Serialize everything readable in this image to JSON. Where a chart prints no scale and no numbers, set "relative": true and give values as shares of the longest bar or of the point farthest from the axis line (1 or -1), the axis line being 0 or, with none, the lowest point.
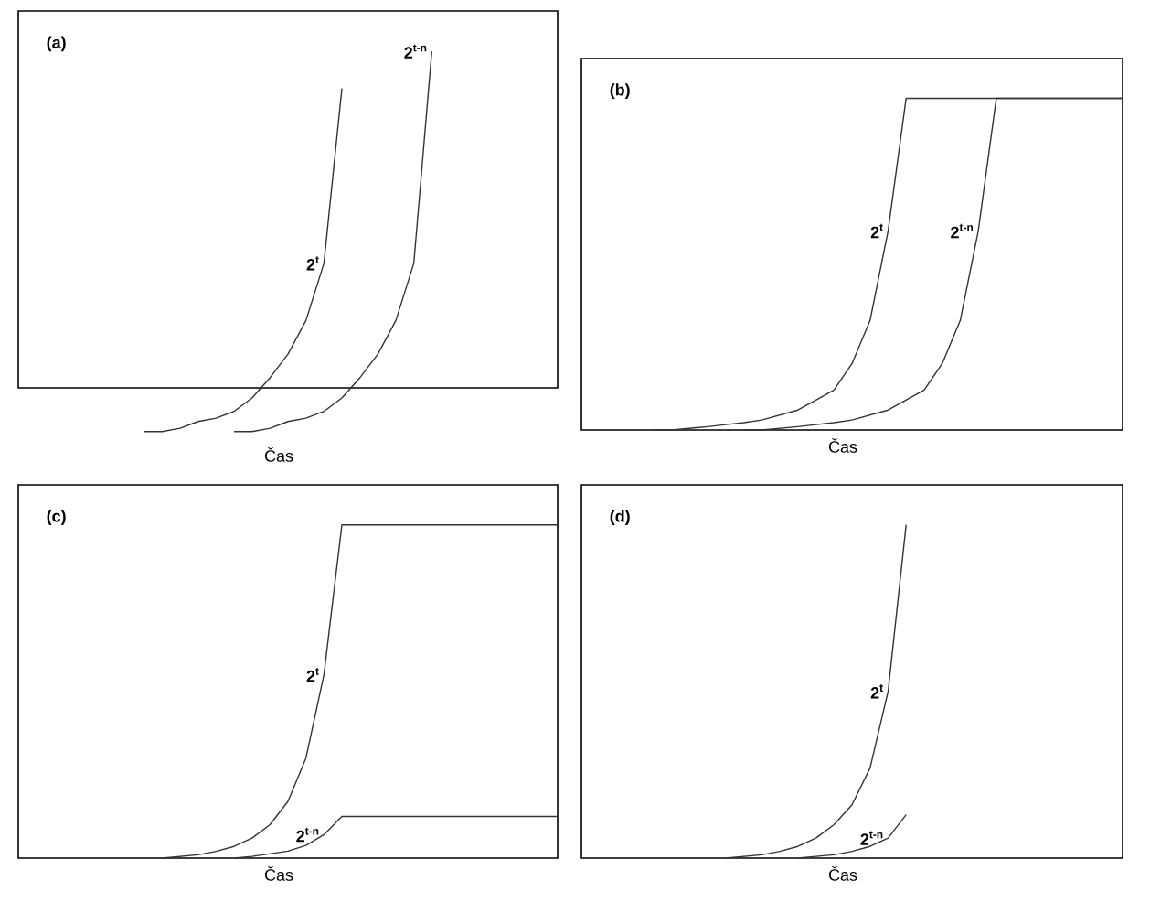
{
  "chart_data": [
    {
      "type": "line",
      "title": "(a)",
      "xlabel": "Čas",
      "relative": true,
      "tick_labels": false,
      "categories": [
        null,
        null,
        null,
        null,
        null,
        null,
        null,
        null,
        null,
        null,
        null,
        null,
        null,
        null,
        null,
        null,
        null,
        null,
        null,
        null,
        null,
        null,
        null,
        null,
        null,
        null,
        null,
        null,
        null,
        null,
        null
      ],
      "series": [
        {
          "name": "2$^{t}$",
          "color": "#333333",
          "values": [
            null,
            null,
            null,
            null,
            null,
            null,
            null,
            -0.13,
            -0.13,
            -0.12,
            -0.1,
            -0.09,
            -0.07,
            -0.03,
            0.03,
            0.1,
            0.2,
            0.37,
            0.89,
            null,
            null,
            null,
            null,
            null,
            null,
            null,
            null,
            null,
            null,
            null,
            null
          ]
        },
        {
          "name": "2$^{t-n}$",
          "color": "#333333",
          "values": [
            null,
            null,
            null,
            null,
            null,
            null,
            null,
            null,
            null,
            null,
            null,
            null,
            -0.13,
            -0.13,
            -0.12,
            -0.1,
            -0.09,
            -0.07,
            -0.03,
            0.03,
            0.1,
            0.2,
            0.37,
            1,
            null,
            null,
            null,
            null,
            null,
            null,
            null
          ]
        }
      ]
    },
    {
      "type": "line",
      "title": "(b)",
      "xlabel": "Čas",
      "relative": true,
      "tick_labels": false,
      "categories": [
        null,
        null,
        null,
        null,
        null,
        null,
        null,
        null,
        null,
        null,
        null,
        null,
        null,
        null,
        null,
        null,
        null,
        null,
        null,
        null,
        null,
        null,
        null,
        null,
        null,
        null,
        null,
        null,
        null,
        null,
        null
      ],
      "series": [
        {
          "name": "2$^{t}$",
          "color": "#333333",
          "values": [
            null,
            null,
            null,
            null,
            0,
            0,
            0.005,
            0.01,
            0.016,
            0.022,
            0.03,
            0.045,
            0.06,
            0.09,
            0.12,
            0.2,
            0.33,
            0.6,
            1,
            1,
            1,
            1,
            1,
            1,
            1,
            1,
            1,
            1,
            1,
            1,
            1
          ]
        },
        {
          "name": "2$^{t-n}$",
          "color": "#333333",
          "values": [
            null,
            null,
            null,
            null,
            null,
            null,
            null,
            null,
            null,
            0,
            0,
            0.005,
            0.01,
            0.016,
            0.022,
            0.03,
            0.045,
            0.06,
            0.09,
            0.12,
            0.2,
            0.33,
            0.6,
            1,
            1,
            1,
            1,
            1,
            1,
            1,
            1
          ]
        }
      ]
    },
    {
      "type": "line",
      "title": "(c)",
      "xlabel": "Čas",
      "relative": true,
      "tick_labels": false,
      "categories": [
        null,
        null,
        null,
        null,
        null,
        null,
        null,
        null,
        null,
        null,
        null,
        null,
        null,
        null,
        null,
        null,
        null,
        null,
        null,
        null,
        null,
        null,
        null,
        null,
        null,
        null,
        null,
        null,
        null,
        null,
        null
      ],
      "series": [
        {
          "name": "2$^{t}$",
          "color": "#333333",
          "values": [
            null,
            null,
            null,
            null,
            null,
            null,
            null,
            null,
            0,
            0.005,
            0.01,
            0.02,
            0.035,
            0.06,
            0.1,
            0.17,
            0.3,
            0.55,
            1,
            1,
            1,
            1,
            1,
            1,
            1,
            1,
            1,
            1,
            1,
            1,
            1
          ]
        },
        {
          "name": "2$^{t-n}$",
          "color": "#333333",
          "values": [
            null,
            null,
            null,
            null,
            null,
            null,
            null,
            null,
            null,
            null,
            null,
            null,
            0,
            0.005,
            0.013,
            0.021,
            0.038,
            0.07,
            0.125,
            0.125,
            0.125,
            0.125,
            0.125,
            0.125,
            0.125,
            0.125,
            0.125,
            0.125,
            0.125,
            0.125,
            0.125
          ]
        }
      ]
    },
    {
      "type": "line",
      "title": "(d)",
      "xlabel": "Čas",
      "relative": true,
      "tick_labels": false,
      "categories": [
        null,
        null,
        null,
        null,
        null,
        null,
        null,
        null,
        null,
        null,
        null,
        null,
        null,
        null,
        null,
        null,
        null,
        null,
        null,
        null,
        null,
        null,
        null,
        null,
        null,
        null,
        null,
        null,
        null,
        null,
        null
      ],
      "series": [
        {
          "name": "2$^{t}$",
          "color": "#333333",
          "values": [
            null,
            null,
            null,
            null,
            null,
            null,
            null,
            null,
            0,
            0.005,
            0.01,
            0.02,
            0.035,
            0.06,
            0.1,
            0.16,
            0.27,
            0.5,
            1,
            null,
            null,
            null,
            null,
            null,
            null,
            null,
            null,
            null,
            null,
            null,
            null
          ]
        },
        {
          "name": "2$^{t-n}$",
          "color": "#333333",
          "values": [
            null,
            null,
            null,
            null,
            null,
            null,
            null,
            null,
            null,
            null,
            null,
            null,
            0,
            0.005,
            0.01,
            0.02,
            0.035,
            0.06,
            0.13,
            null,
            null,
            null,
            null,
            null,
            null,
            null,
            null,
            null,
            null,
            null,
            null
          ]
        }
      ]
    }
  ]
}
